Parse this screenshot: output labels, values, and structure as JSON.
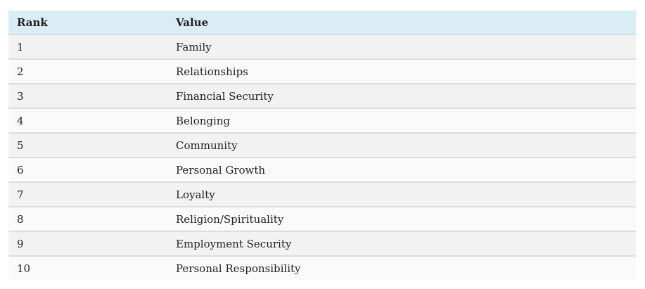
{
  "table": {
    "headers": [
      "Rank",
      "Value"
    ],
    "rows": [
      [
        "1",
        "Family"
      ],
      [
        "2",
        "Relationships"
      ],
      [
        "3",
        "Financial Security"
      ],
      [
        "4",
        "Belonging"
      ],
      [
        "5",
        "Community"
      ],
      [
        "6",
        "Personal Growth"
      ],
      [
        "7",
        "Loyalty"
      ],
      [
        "8",
        "Religion/Spirituality"
      ],
      [
        "9",
        "Employment Security"
      ],
      [
        "10",
        "Personal Responsibility"
      ]
    ],
    "colors": {
      "header_background": "#daedf5",
      "row_odd_background": "#f2f2f2",
      "row_even_background": "#fafafa"
    }
  }
}
